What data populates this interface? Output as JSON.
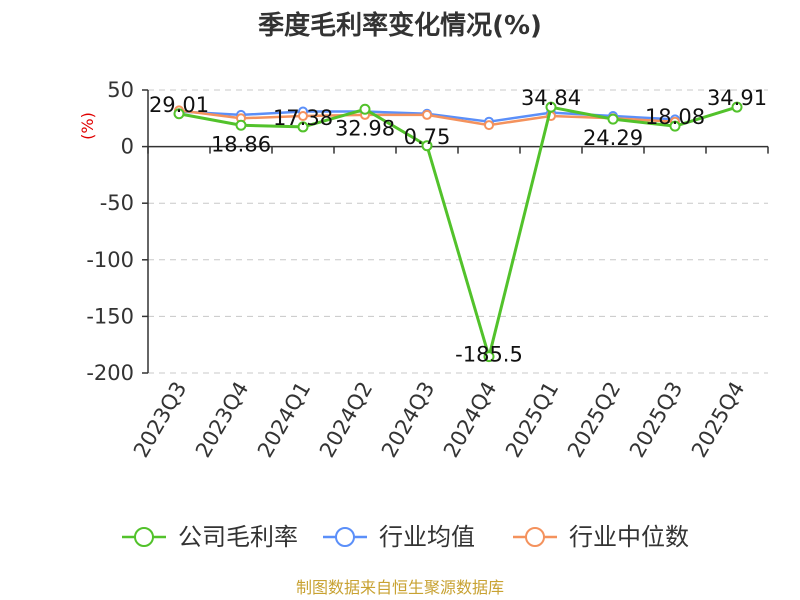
{
  "chart_data": {
    "type": "line",
    "title": "季度毛利率变化情况(%)",
    "ylabel": "(%)",
    "xlabel": "",
    "categories": [
      "2023Q3",
      "2023Q4",
      "2024Q1",
      "2024Q2",
      "2024Q3",
      "2024Q4",
      "2025Q1",
      "2025Q2",
      "2025Q3",
      "2025Q4"
    ],
    "ylim": [
      -200,
      50
    ],
    "yticks": [
      50,
      0,
      -50,
      -100,
      -150,
      -200
    ],
    "grid": true,
    "legend_position": "bottom",
    "series": [
      {
        "name": "公司毛利率",
        "color": "#52c22b",
        "values": [
          29.01,
          18.86,
          17.38,
          32.98,
          0.75,
          -185.5,
          34.84,
          24.29,
          18.08,
          34.91
        ],
        "labels": [
          "29.01",
          "18.86",
          "17.38",
          "32.98",
          "0.75",
          "-185.5",
          "34.84",
          "24.29",
          "18.08",
          "34.91"
        ]
      },
      {
        "name": "行业均值",
        "color": "#5b8ff9",
        "values": [
          31,
          28,
          31,
          31,
          29,
          22,
          30,
          27,
          24,
          null
        ]
      },
      {
        "name": "行业中位数",
        "color": "#f4925d",
        "values": [
          32,
          25,
          27,
          28,
          28,
          19,
          27,
          25,
          22,
          null
        ]
      }
    ]
  },
  "source": "制图数据来自恒生聚源数据库"
}
